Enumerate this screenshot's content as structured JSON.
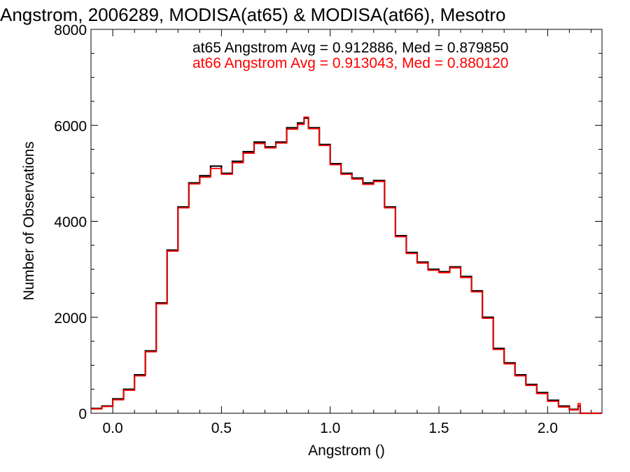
{
  "chart_data": {
    "type": "line",
    "title": "Angstrom, 2006289, MODISA(at65) & MODISA(at66), Mesotro",
    "xlabel": "Angstrom ()",
    "ylabel": "Number of Observations",
    "xlim": [
      -0.1,
      2.25
    ],
    "ylim": [
      0,
      8000
    ],
    "xticks": [
      0.0,
      0.5,
      1.0,
      1.5,
      2.0
    ],
    "xtick_labels": [
      "0.0",
      "0.5",
      "1.0",
      "1.5",
      "2.0"
    ],
    "yticks": [
      0,
      2000,
      4000,
      6000,
      8000
    ],
    "ytick_labels": [
      "0",
      "2000",
      "4000",
      "6000",
      "8000"
    ],
    "grid": false,
    "step": true,
    "annotations": [
      {
        "text": "at65 Angstrom Avg = 0.912886, Med = 0.879850",
        "color": "#000000"
      },
      {
        "text": "at66 Angstrom Avg = 0.913043, Med = 0.880120",
        "color": "#ff0000"
      }
    ],
    "series": [
      {
        "color": "#000000",
        "x": [
          -0.1,
          -0.05,
          0.0,
          0.05,
          0.1,
          0.15,
          0.2,
          0.25,
          0.3,
          0.35,
          0.4,
          0.45,
          0.5,
          0.55,
          0.6,
          0.65,
          0.7,
          0.75,
          0.8,
          0.85,
          0.88,
          0.9,
          0.95,
          1.0,
          1.05,
          1.1,
          1.15,
          1.2,
          1.25,
          1.3,
          1.35,
          1.4,
          1.45,
          1.5,
          1.55,
          1.6,
          1.65,
          1.7,
          1.75,
          1.8,
          1.85,
          1.9,
          1.95,
          2.0,
          2.05,
          2.1,
          2.14,
          2.15,
          2.2,
          2.25
        ],
        "y": [
          100,
          150,
          300,
          500,
          800,
          1300,
          2300,
          3400,
          4300,
          4800,
          4950,
          5150,
          5000,
          5250,
          5450,
          5650,
          5550,
          5650,
          5950,
          6050,
          6150,
          5950,
          5600,
          5200,
          5000,
          4900,
          4800,
          4850,
          4300,
          3700,
          3350,
          3150,
          3000,
          2950,
          3050,
          2850,
          2550,
          2000,
          1350,
          1050,
          800,
          600,
          430,
          270,
          150,
          80,
          150,
          0,
          0,
          0
        ]
      },
      {
        "color": "#ff0000",
        "x": [
          -0.1,
          -0.05,
          0.0,
          0.05,
          0.1,
          0.15,
          0.2,
          0.25,
          0.3,
          0.35,
          0.4,
          0.45,
          0.5,
          0.55,
          0.6,
          0.65,
          0.7,
          0.75,
          0.8,
          0.85,
          0.88,
          0.9,
          0.95,
          1.0,
          1.05,
          1.1,
          1.15,
          1.2,
          1.25,
          1.3,
          1.35,
          1.4,
          1.45,
          1.5,
          1.55,
          1.6,
          1.65,
          1.7,
          1.75,
          1.8,
          1.85,
          1.9,
          1.95,
          2.0,
          2.05,
          2.1,
          2.14,
          2.15,
          2.2,
          2.25
        ],
        "y": [
          90,
          140,
          280,
          480,
          780,
          1280,
          2280,
          3380,
          4280,
          4780,
          4920,
          5100,
          4980,
          5220,
          5420,
          5620,
          5530,
          5630,
          5920,
          6020,
          6170,
          5930,
          5580,
          5180,
          4980,
          4880,
          4770,
          4830,
          4280,
          3680,
          3330,
          3130,
          2980,
          2930,
          3030,
          2830,
          2530,
          1980,
          1330,
          1030,
          780,
          580,
          410,
          250,
          130,
          70,
          200,
          0,
          0,
          0
        ]
      }
    ]
  }
}
